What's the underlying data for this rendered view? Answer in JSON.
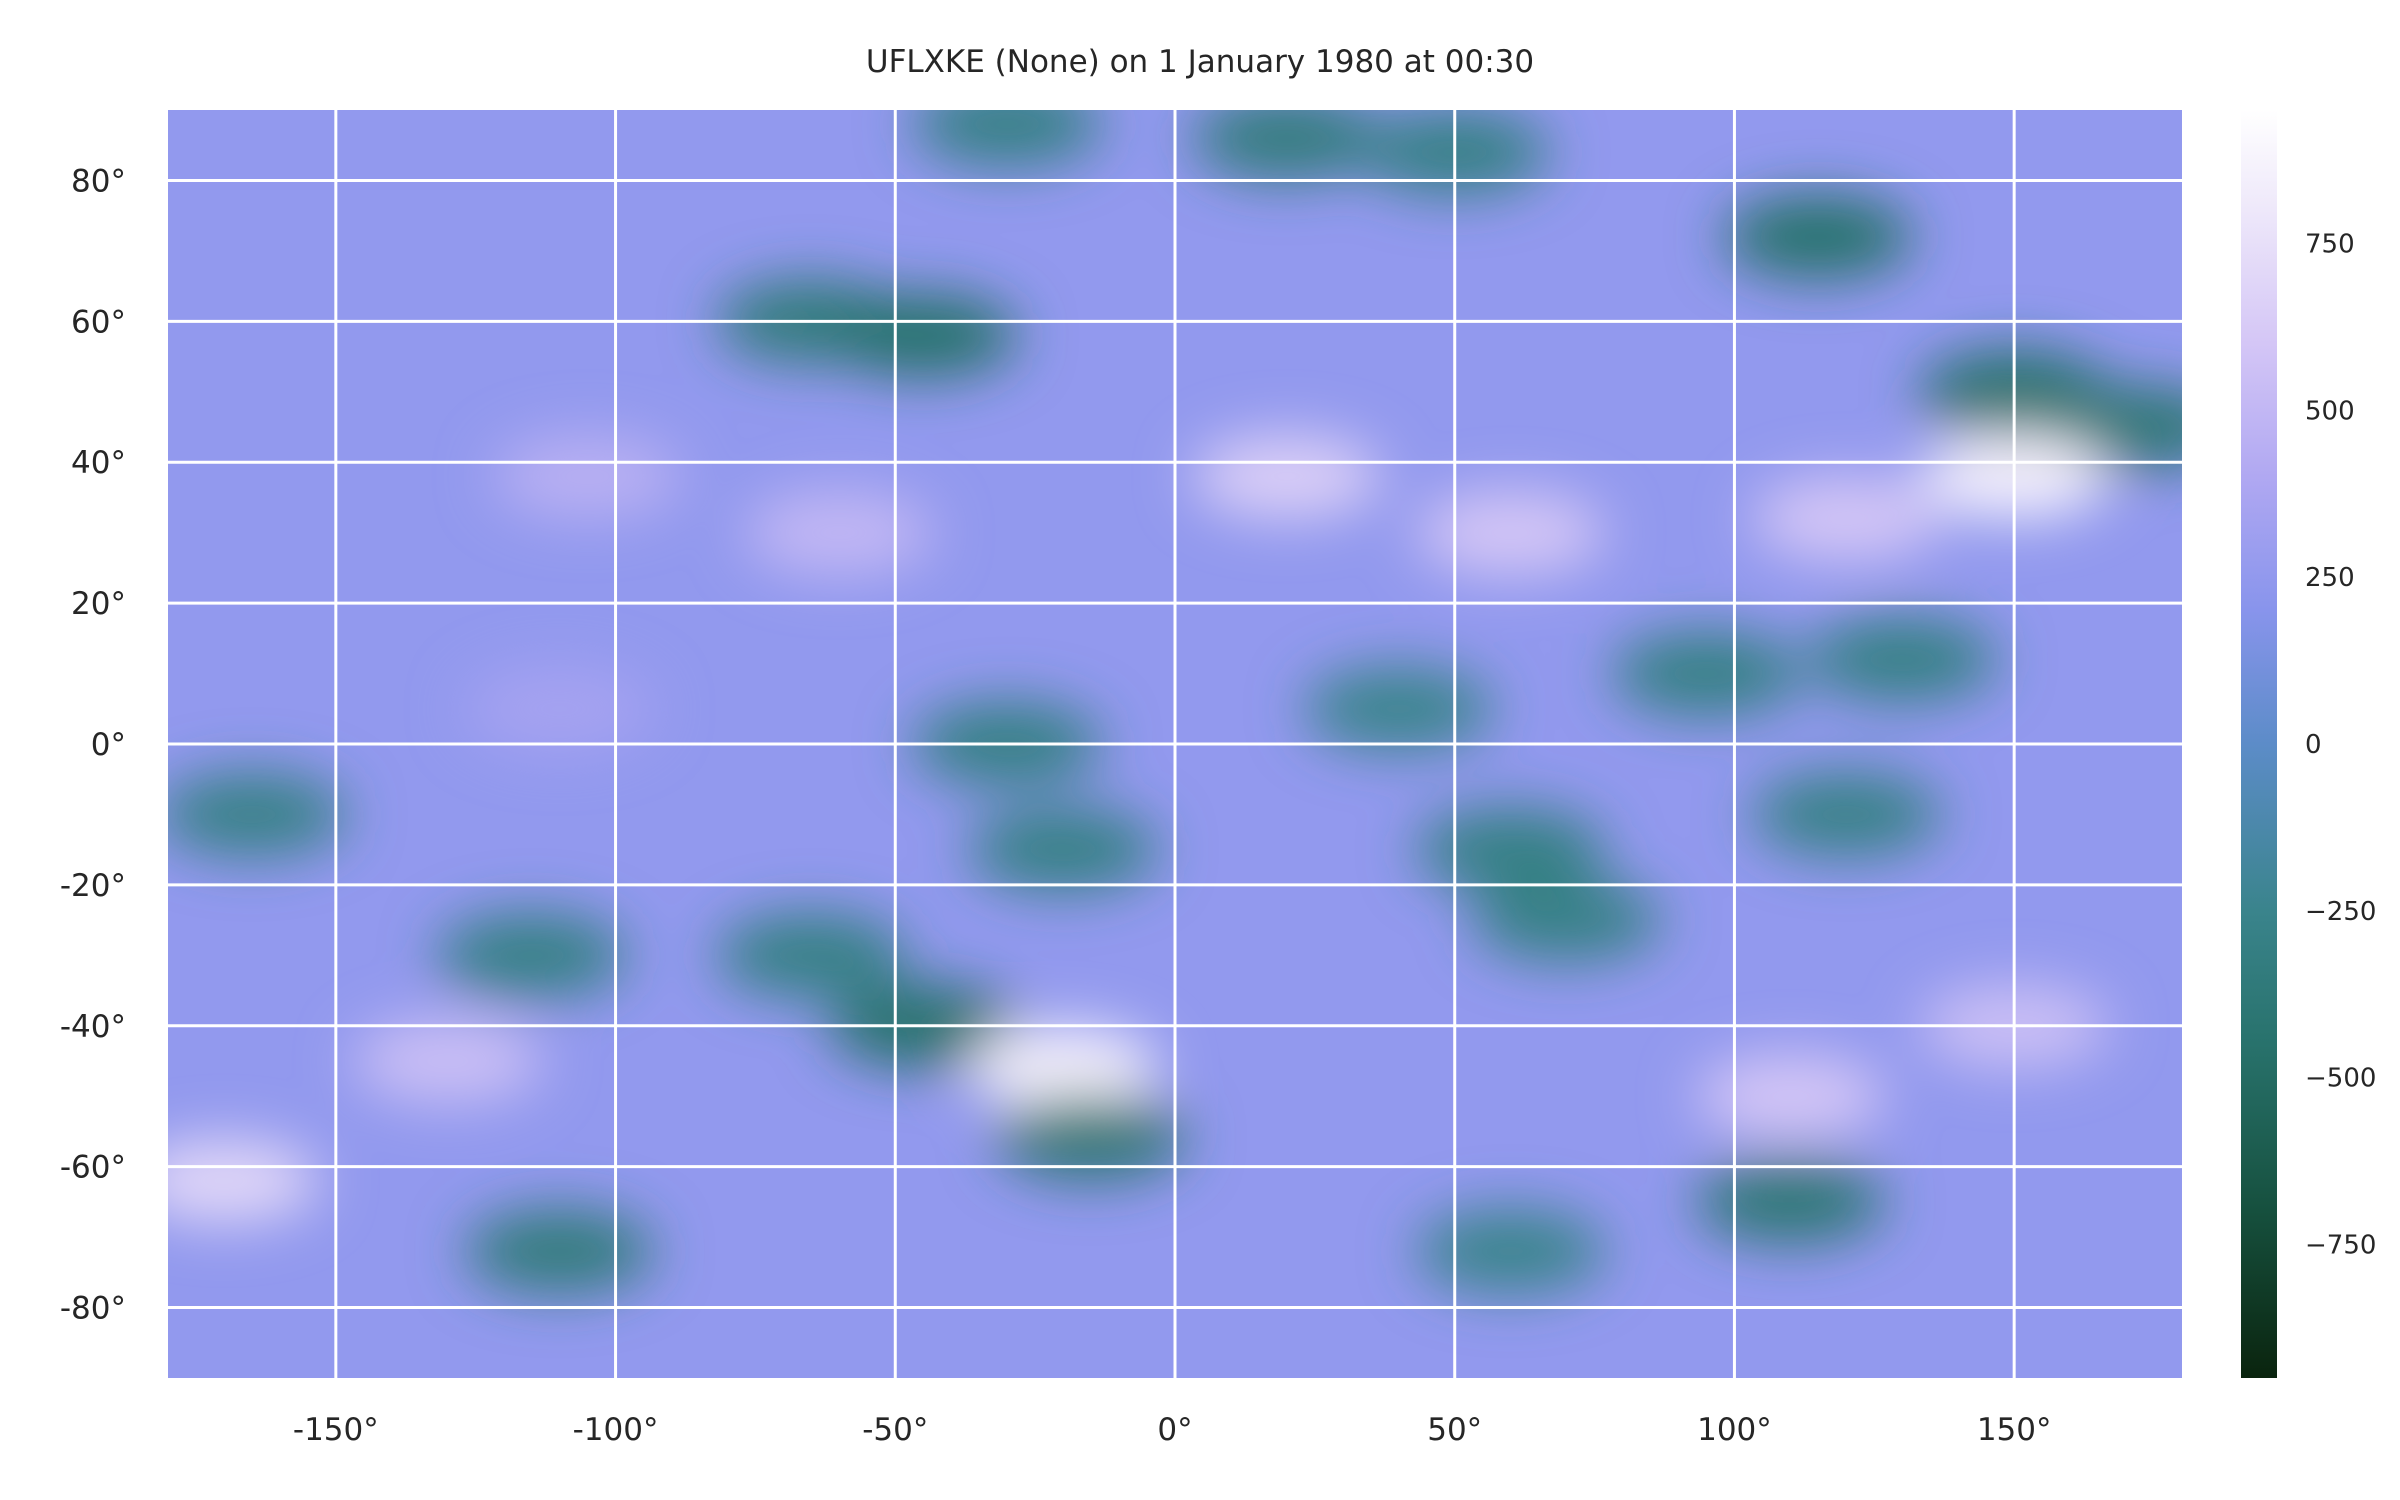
{
  "chart_data": {
    "type": "heatmap",
    "title": "UFLXKE (None) on 1 January 1980 at 00:30",
    "xlabel": "",
    "ylabel": "",
    "xlim": [
      -180,
      180
    ],
    "ylim": [
      -90,
      90
    ],
    "grid": true,
    "x_ticks": [
      -150,
      -100,
      -50,
      0,
      50,
      100,
      150
    ],
    "x_tick_labels": [
      "-150°",
      "-100°",
      "-50°",
      "0°",
      "50°",
      "100°",
      "150°"
    ],
    "y_ticks": [
      80,
      60,
      40,
      20,
      0,
      -20,
      -40,
      -60,
      -80
    ],
    "y_tick_labels": [
      "80°",
      "60°",
      "40°",
      "20°",
      "0°",
      "-20°",
      "-40°",
      "-60°",
      "-80°"
    ],
    "colorbar": {
      "colormap": "cubehelix-like (dark green → teal → blue → lavender → white)",
      "range": [
        -950,
        950
      ],
      "ticks": [
        750,
        500,
        250,
        0,
        -250,
        -500,
        -750
      ],
      "tick_labels": [
        "750",
        "500",
        "250",
        "0",
        "−250",
        "−500",
        "−750"
      ]
    },
    "features": [
      {
        "lon": -30,
        "lat": 88,
        "value": -300
      },
      {
        "lon": 20,
        "lat": 86,
        "value": -350
      },
      {
        "lon": 50,
        "lat": 84,
        "value": -300
      },
      {
        "lon": 115,
        "lat": 72,
        "value": -450
      },
      {
        "lon": -65,
        "lat": 60,
        "value": -350
      },
      {
        "lon": -45,
        "lat": 58,
        "value": -450
      },
      {
        "lon": 150,
        "lat": 50,
        "value": -450
      },
      {
        "lon": 172,
        "lat": 45,
        "value": -400
      },
      {
        "lon": -105,
        "lat": 38,
        "value": 450
      },
      {
        "lon": -60,
        "lat": 30,
        "value": 500
      },
      {
        "lon": 20,
        "lat": 38,
        "value": 650
      },
      {
        "lon": 60,
        "lat": 30,
        "value": 600
      },
      {
        "lon": 150,
        "lat": 38,
        "value": 850
      },
      {
        "lon": 120,
        "lat": 32,
        "value": 600
      },
      {
        "lon": 95,
        "lat": 10,
        "value": -300
      },
      {
        "lon": 130,
        "lat": 12,
        "value": -300
      },
      {
        "lon": 40,
        "lat": 5,
        "value": -250
      },
      {
        "lon": -30,
        "lat": 0,
        "value": -300
      },
      {
        "lon": -20,
        "lat": -15,
        "value": -300
      },
      {
        "lon": 60,
        "lat": -15,
        "value": -300
      },
      {
        "lon": 120,
        "lat": -10,
        "value": -280
      },
      {
        "lon": -165,
        "lat": -10,
        "value": -280
      },
      {
        "lon": -110,
        "lat": 5,
        "value": 350
      },
      {
        "lon": -115,
        "lat": -30,
        "value": -300
      },
      {
        "lon": -65,
        "lat": -30,
        "value": -300
      },
      {
        "lon": -45,
        "lat": -40,
        "value": -450
      },
      {
        "lon": 70,
        "lat": -25,
        "value": -280
      },
      {
        "lon": -20,
        "lat": -46,
        "value": 850
      },
      {
        "lon": -130,
        "lat": -45,
        "value": 550
      },
      {
        "lon": 110,
        "lat": -50,
        "value": 600
      },
      {
        "lon": 150,
        "lat": -40,
        "value": 550
      },
      {
        "lon": -170,
        "lat": -62,
        "value": 700
      },
      {
        "lon": -15,
        "lat": -56,
        "value": -400
      },
      {
        "lon": -110,
        "lat": -72,
        "value": -350
      },
      {
        "lon": 110,
        "lat": -65,
        "value": -400
      },
      {
        "lon": 60,
        "lat": -72,
        "value": -250
      }
    ]
  }
}
